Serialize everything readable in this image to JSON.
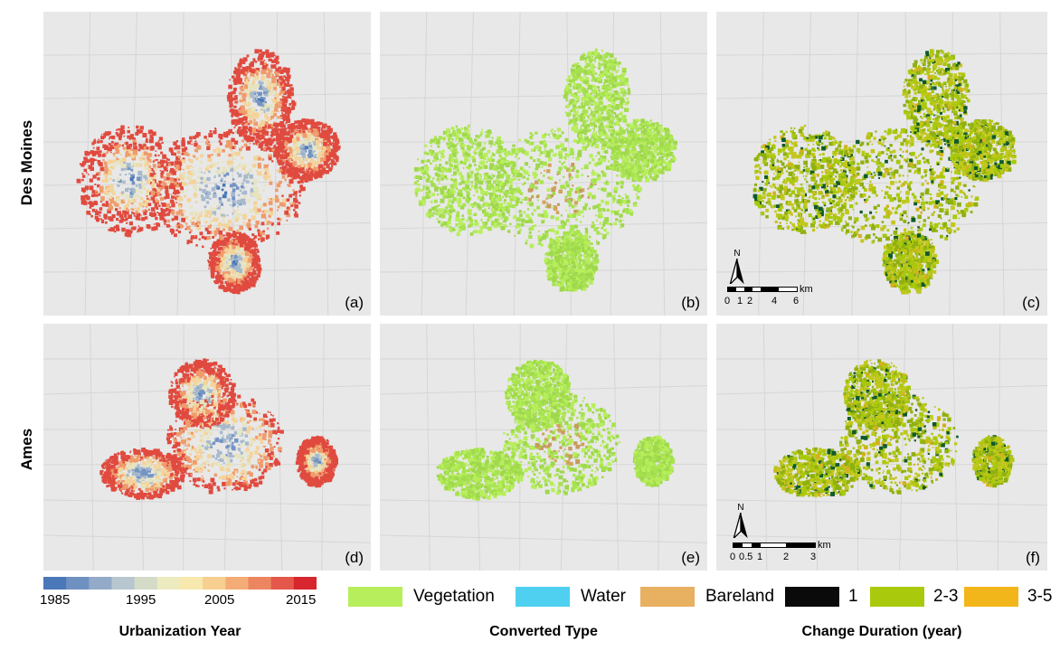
{
  "rows": [
    "Des Moines",
    "Ames"
  ],
  "panels": {
    "a": "(a)",
    "b": "(b)",
    "c": "(c)",
    "d": "(d)",
    "e": "(e)",
    "f": "(f)"
  },
  "scalebar_top": {
    "unit": "km",
    "ticks": [
      "0",
      "1",
      "2",
      "4",
      "6"
    ],
    "north": "N"
  },
  "scalebar_bottom": {
    "unit": "km",
    "ticks": [
      "0",
      "0.5",
      "1",
      "2",
      "3"
    ],
    "north": "N"
  },
  "colorbar": {
    "ticks": [
      "1985",
      "1995",
      "2005",
      "2015"
    ],
    "colors": [
      "#4a78b8",
      "#6f91c2",
      "#93aac8",
      "#b7c6cf",
      "#d4dbc7",
      "#ecebc0",
      "#f7e8ad",
      "#f7cf90",
      "#f3ac75",
      "#ec8660",
      "#e4574a",
      "#d7262d"
    ]
  },
  "legend_type": [
    {
      "label": "Vegetation",
      "color": "#b7ee5b"
    },
    {
      "label": "Water",
      "color": "#4fd0f0"
    },
    {
      "label": "Bareland",
      "color": "#e8b061"
    }
  ],
  "legend_duration": [
    {
      "label": "1",
      "color": "#0a0a0a"
    },
    {
      "label": "2-3",
      "color": "#a9c90c"
    },
    {
      "label": "3-5",
      "color": "#f2b61b"
    }
  ],
  "titles": {
    "urbanization": "Urbanization Year",
    "converted": "Converted Type",
    "duration": "Change Duration (year)"
  },
  "map_palettes": {
    "year": [
      "#4a78b8",
      "#7494c3",
      "#a7b9cc",
      "#e6e4bf",
      "#f4d39a",
      "#ef9b6c",
      "#e04a3f"
    ],
    "type": [
      "#a7e34f",
      "#b7ee5b",
      "#9fd84c",
      "#d2a35a",
      "#c89a60"
    ],
    "duration": [
      "#a9c90c",
      "#8fb010",
      "#c2c71c",
      "#0f5a2a",
      "#d4b01e"
    ]
  }
}
